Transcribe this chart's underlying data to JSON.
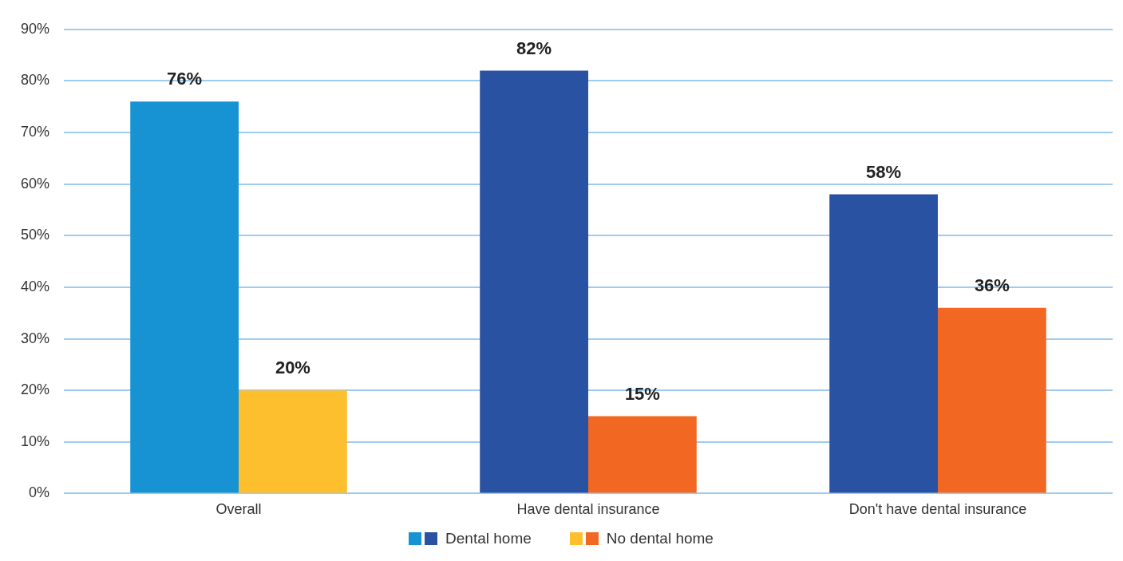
{
  "chart_data": {
    "type": "bar",
    "categories": [
      "Overall",
      "Have dental insurance",
      "Don't have dental insurance"
    ],
    "series": [
      {
        "name": "Dental home",
        "colors": [
          "#1793d4",
          "#2a52a3",
          "#2a52a3"
        ],
        "values": [
          76,
          82,
          58
        ],
        "value_labels": [
          "76%",
          "82%",
          "58%"
        ]
      },
      {
        "name": "No dental home",
        "colors": [
          "#fdbf2d",
          "#f26722",
          "#f26722"
        ],
        "values": [
          20,
          15,
          36
        ],
        "value_labels": [
          "20%",
          "15%",
          "36%"
        ]
      }
    ],
    "ylim": [
      0,
      90
    ],
    "yticks": [
      {
        "value": 0,
        "label": "0%"
      },
      {
        "value": 10,
        "label": "10%"
      },
      {
        "value": 20,
        "label": "20%"
      },
      {
        "value": 30,
        "label": "30%"
      },
      {
        "value": 40,
        "label": "40%"
      },
      {
        "value": 50,
        "label": "50%"
      },
      {
        "value": 60,
        "label": "60%"
      },
      {
        "value": 70,
        "label": "70%"
      },
      {
        "value": 80,
        "label": "80%"
      },
      {
        "value": 90,
        "label": "90%"
      }
    ],
    "grid": "y",
    "legend": "bottom"
  }
}
